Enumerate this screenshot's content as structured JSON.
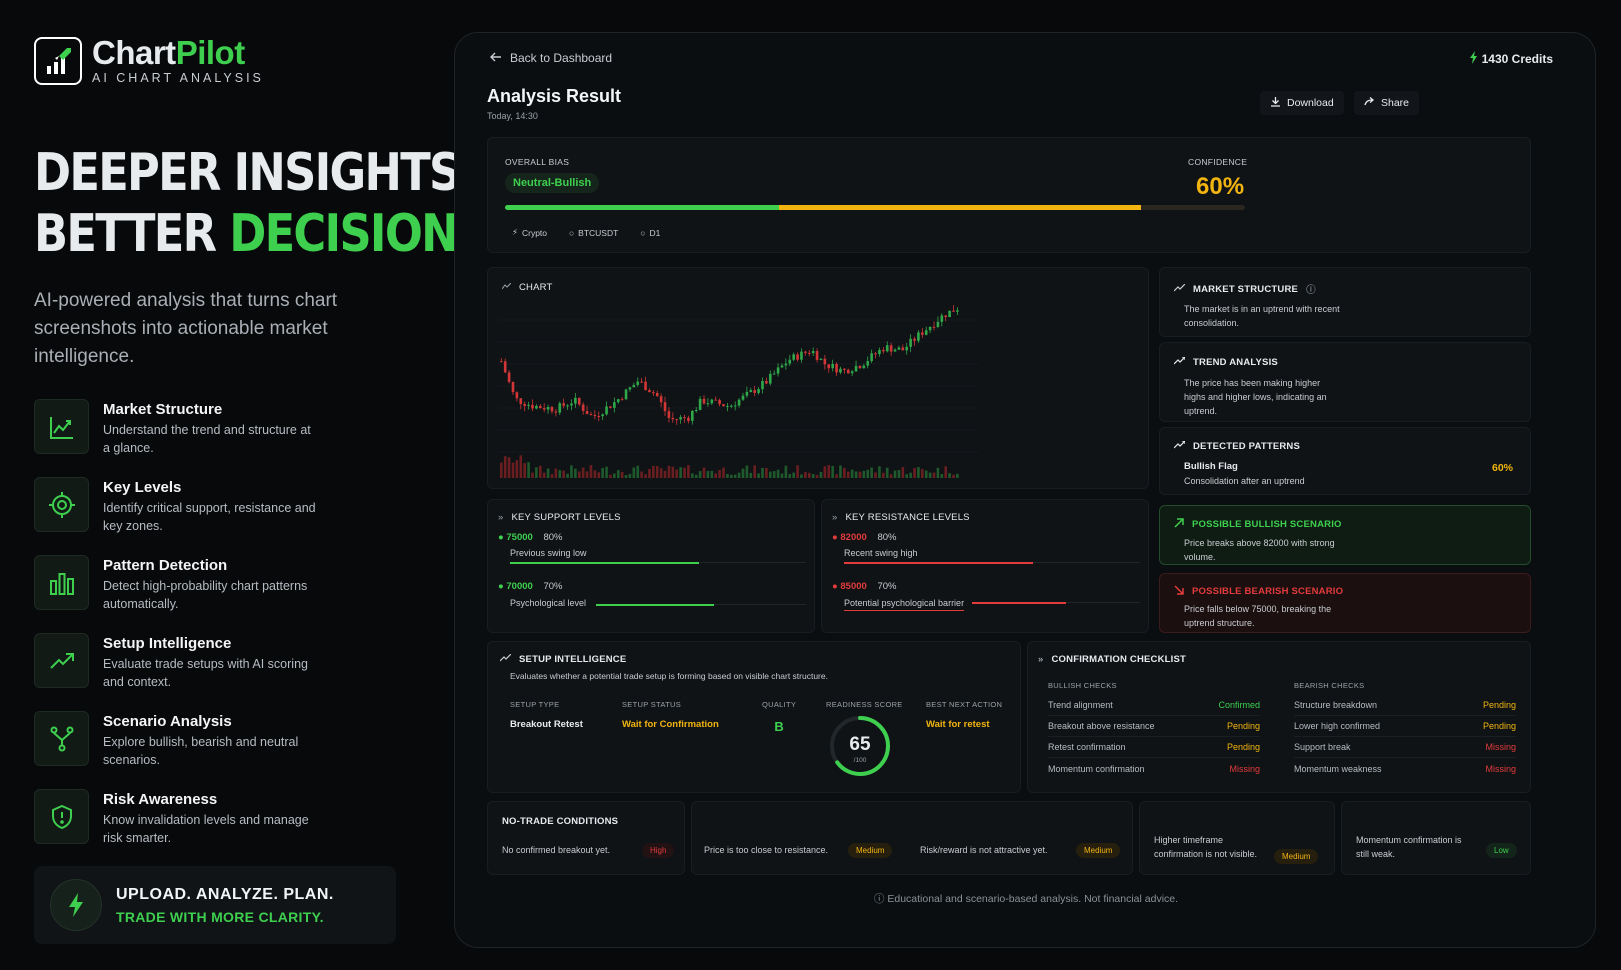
{
  "brand": {
    "name_a": "Chart",
    "name_b": "Pilot",
    "subtitle": "AI CHART ANALYSIS"
  },
  "hero": {
    "line1": "DEEPER INSIGHTS.",
    "line2_a": "BETTER ",
    "line2_b": "DECISIONS."
  },
  "lead": "AI-powered analysis that turns chart screenshots into actionable market intelligence.",
  "features": [
    {
      "icon": "trend-chart-icon",
      "title": "Market Structure",
      "desc": "Understand the trend and structure at a glance."
    },
    {
      "icon": "target-icon",
      "title": "Key Levels",
      "desc": "Identify critical support, resistance and key zones."
    },
    {
      "icon": "bars-icon",
      "title": "Pattern Detection",
      "desc": "Detect high-probability chart patterns automatically."
    },
    {
      "icon": "trending-up-icon",
      "title": "Setup Intelligence",
      "desc": "Evaluate trade setups with AI scoring and context."
    },
    {
      "icon": "branch-icon",
      "title": "Scenario Analysis",
      "desc": "Explore bullish, bearish and neutral scenarios."
    },
    {
      "icon": "shield-icon",
      "title": "Risk Awareness",
      "desc": "Know invalidation levels and manage risk smarter."
    }
  ],
  "cta": {
    "line1": "UPLOAD. ANALYZE. PLAN.",
    "line2": "TRADE WITH MORE CLARITY."
  },
  "app": {
    "back": "Back to Dashboard",
    "credits": "1430 Credits",
    "title": "Analysis Result",
    "timestamp": "Today, 14:30",
    "download": "Download",
    "share": "Share",
    "bias_label": "OVERALL BIAS",
    "bias_value": "Neutral-Bullish",
    "confidence_label": "CONFIDENCE",
    "confidence_value": "60%",
    "bias_bar": {
      "green": 0.37,
      "yellow": 0.49
    },
    "tags": [
      "Crypto",
      "BTCUSDT",
      "D1"
    ],
    "chart_label": "CHART",
    "market_structure": {
      "title": "MARKET STRUCTURE",
      "text": "The market is in an uptrend with recent consolidation."
    },
    "trend_analysis": {
      "title": "TREND ANALYSIS",
      "text": "The price has been making higher highs and higher lows, indicating an uptrend."
    },
    "patterns": {
      "title": "DETECTED PATTERNS",
      "name": "Bullish Flag",
      "desc": "Consolidation after an uptrend",
      "pct": "60%"
    },
    "bullish": {
      "title": "POSSIBLE BULLISH SCENARIO",
      "text": "Price breaks above 82000 with strong volume."
    },
    "bearish": {
      "title": "POSSIBLE BEARISH SCENARIO",
      "text": "Price falls below 75000, breaking the uptrend structure."
    },
    "support": {
      "title": "KEY SUPPORT LEVELS",
      "levels": [
        {
          "price": "75000",
          "pct": "80%",
          "note": "Previous swing low",
          "strength": 0.8
        },
        {
          "price": "70000",
          "pct": "70%",
          "note": "Psychological level",
          "strength": 0.7
        }
      ]
    },
    "resistance": {
      "title": "KEY RESISTANCE LEVELS",
      "levels": [
        {
          "price": "82000",
          "pct": "80%",
          "note": "Recent swing high",
          "strength": 0.8
        },
        {
          "price": "85000",
          "pct": "70%",
          "note": "Potential psychological barrier",
          "strength": 0.7
        }
      ]
    },
    "setup": {
      "title": "SETUP INTELLIGENCE",
      "desc": "Evaluates whether a potential trade setup is forming based on visible chart structure.",
      "type_label": "SETUP TYPE",
      "type": "Breakout Retest",
      "status_label": "SETUP STATUS",
      "status": "Wait for Confirmation",
      "quality_label": "QUALITY",
      "quality": "B",
      "score_label": "READINESS SCORE",
      "score": "65",
      "score_max": "/100",
      "score_value": 65,
      "action_label": "BEST NEXT ACTION",
      "action": "Wait for retest"
    },
    "checklist": {
      "title": "CONFIRMATION CHECKLIST",
      "bullish_label": "BULLISH CHECKS",
      "bearish_label": "BEARISH CHECKS",
      "bullish": [
        {
          "name": "Trend alignment",
          "status": "Confirmed"
        },
        {
          "name": "Breakout above resistance",
          "status": "Pending"
        },
        {
          "name": "Retest confirmation",
          "status": "Pending"
        },
        {
          "name": "Momentum confirmation",
          "status": "Missing"
        }
      ],
      "bearish": [
        {
          "name": "Structure breakdown",
          "status": "Pending"
        },
        {
          "name": "Lower high confirmed",
          "status": "Pending"
        },
        {
          "name": "Support break",
          "status": "Missing"
        },
        {
          "name": "Momentum weakness",
          "status": "Missing"
        }
      ]
    },
    "no_trade": {
      "title": "NO-TRADE CONDITIONS",
      "items": [
        {
          "text": "No confirmed breakout yet.",
          "level": "High"
        },
        {
          "text": "Price is too close to resistance.",
          "level": "Medium"
        },
        {
          "text": "Risk/reward is not attractive yet.",
          "level": "Medium"
        },
        {
          "text": "Higher timeframe confirmation is not visible.",
          "level": "Medium"
        },
        {
          "text": "Momentum confirmation is still weak.",
          "level": "Low"
        }
      ]
    },
    "disclaimer": "Educational and scenario-based analysis. Not financial advice."
  },
  "colors": {
    "green": "#3ecf4f",
    "yellow": "#f2b50f",
    "red": "#e23b3b",
    "background": "#07090b"
  }
}
